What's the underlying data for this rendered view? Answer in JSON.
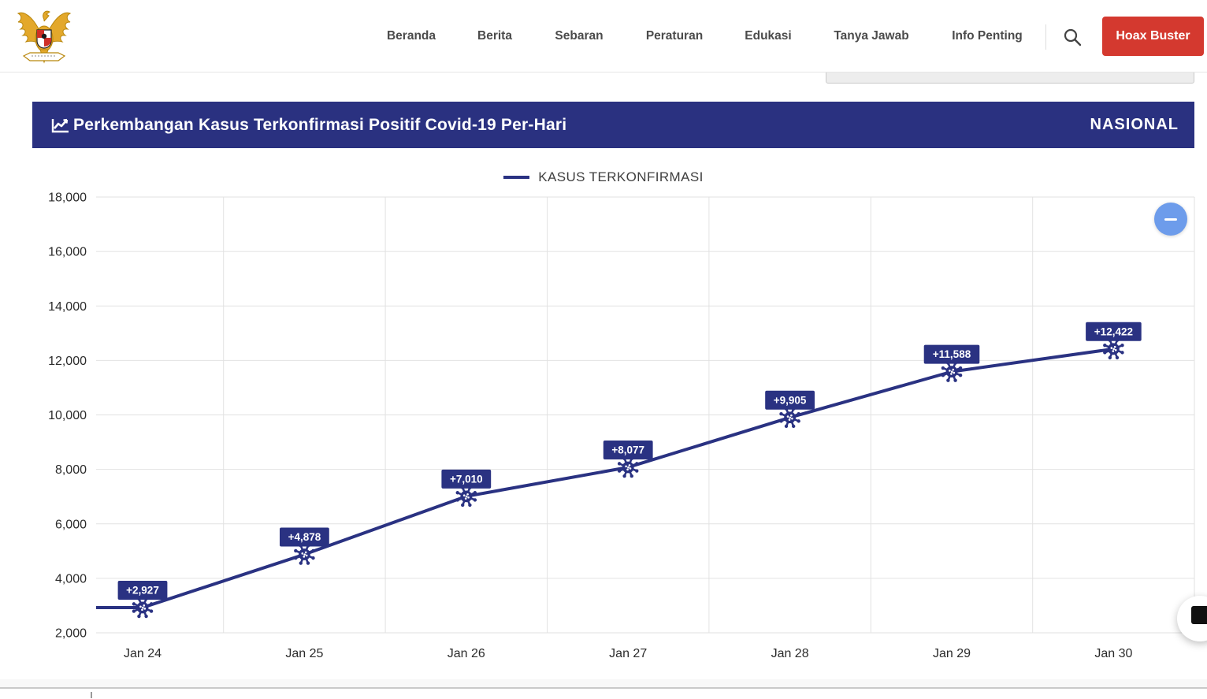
{
  "nav": {
    "logo": "garuda-pancasila-emblem",
    "items": [
      "Beranda",
      "Berita",
      "Sebaran",
      "Peraturan",
      "Edukasi",
      "Tanya Jawab",
      "Info Penting"
    ],
    "search_icon": "search-icon",
    "hoax_buster_label": "Hoax Buster"
  },
  "panel": {
    "title": "Perkembangan Kasus Terkonfirmasi Positif Covid-19 Per-Hari",
    "region_label": "NASIONAL",
    "title_icon": "line-chart-icon"
  },
  "chart_data": {
    "type": "line",
    "title": "Perkembangan Kasus Terkonfirmasi Positif Covid-19 Per-Hari",
    "legend_label": "KASUS TERKONFIRMASI",
    "legend_position": "top-center",
    "categories": [
      "Jan 24",
      "Jan 25",
      "Jan 26",
      "Jan 27",
      "Jan 28",
      "Jan 29",
      "Jan 30"
    ],
    "series": [
      {
        "name": "KASUS TERKONFIRMASI",
        "values": [
          2927,
          4878,
          7010,
          8077,
          9905,
          11588,
          12422
        ],
        "point_labels": [
          "+2,927",
          "+4,878",
          "+7,010",
          "+8,077",
          "+9,905",
          "+11,588",
          "+12,422"
        ]
      }
    ],
    "ylim": [
      2000,
      18000
    ],
    "ytick_step": 2000,
    "ytick_labels": [
      "2,000",
      "4,000",
      "6,000",
      "8,000",
      "10,000",
      "12,000",
      "14,000",
      "16,000",
      "18,000"
    ],
    "grid": true,
    "marker": "virus-icon",
    "lead_in_from_left_edge": true,
    "line_color": "#2a3282"
  },
  "floating_button": {
    "glyph": "minus"
  },
  "colors": {
    "navy_line": "#2a3282",
    "panel_navy": "#2a3180",
    "hoax_red": "#d4392f",
    "fab_blue": "#6d9ceb",
    "grid_gray": "#e2e2e2"
  }
}
